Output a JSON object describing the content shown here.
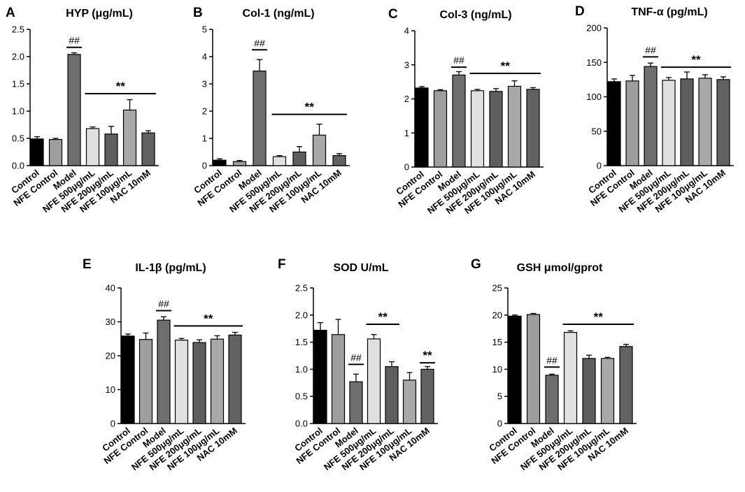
{
  "categories": [
    "Control",
    "NFE Control",
    "Model",
    "NFE 500μg/mL",
    "NFE 200μg/mL",
    "NFE 100μg/mL",
    "NAC 10mM"
  ],
  "colors": {
    "bars": [
      "#000000",
      "#9e9e9e",
      "#6e6e6e",
      "#e0e0e0",
      "#5e5e5e",
      "#a8a8a8",
      "#626262"
    ],
    "ink": "#000000"
  },
  "chart_data": [
    {
      "type": "bar",
      "panel": "A",
      "title": "HYP (μg/mL)",
      "ylim": [
        0,
        2.5
      ],
      "yticks": [
        "0.0",
        "0.5",
        "1.0",
        "1.5",
        "2.0",
        "2.5"
      ],
      "values": [
        0.49,
        0.48,
        2.04,
        0.68,
        0.58,
        1.02,
        0.6
      ],
      "errors": [
        0.04,
        0.02,
        0.03,
        0.03,
        0.14,
        0.19,
        0.04
      ],
      "annotations": [
        {
          "text": "##",
          "from": 2,
          "to": 2,
          "y": 2.17
        },
        {
          "text": "**",
          "from": 3,
          "to": 6,
          "y": 1.32
        }
      ]
    },
    {
      "type": "bar",
      "panel": "B",
      "title": "Col-1 (ng/mL)",
      "ylim": [
        0,
        5
      ],
      "yticks": [
        "0",
        "1",
        "2",
        "3",
        "4",
        "5"
      ],
      "values": [
        0.2,
        0.15,
        3.47,
        0.33,
        0.5,
        1.12,
        0.37
      ],
      "errors": [
        0.05,
        0.04,
        0.42,
        0.04,
        0.2,
        0.4,
        0.07
      ],
      "annotations": [
        {
          "text": "##",
          "from": 2,
          "to": 2,
          "y": 4.25
        },
        {
          "text": "**",
          "from": 3,
          "to": 6,
          "y": 1.88
        }
      ]
    },
    {
      "type": "bar",
      "panel": "C",
      "title": "Col-3 (ng/mL)",
      "ylim": [
        0,
        4
      ],
      "yticks": [
        "0",
        "1",
        "2",
        "3",
        "4"
      ],
      "values": [
        2.32,
        2.24,
        2.7,
        2.24,
        2.22,
        2.37,
        2.28
      ],
      "errors": [
        0.04,
        0.03,
        0.1,
        0.04,
        0.08,
        0.16,
        0.05
      ],
      "annotations": [
        {
          "text": "##",
          "from": 2,
          "to": 2,
          "y": 2.93
        },
        {
          "text": "**",
          "from": 3,
          "to": 6,
          "y": 2.75
        }
      ]
    },
    {
      "type": "bar",
      "panel": "D",
      "title": "TNF-α (pg/mL)",
      "ylim": [
        0,
        200
      ],
      "yticks": [
        "0",
        "50",
        "100",
        "150",
        "200"
      ],
      "values": [
        122,
        123,
        144,
        124,
        126,
        127,
        125
      ],
      "errors": [
        4,
        8,
        5,
        4,
        10,
        5,
        4
      ],
      "annotations": [
        {
          "text": "##",
          "from": 2,
          "to": 2,
          "y": 158
        },
        {
          "text": "**",
          "from": 3,
          "to": 6,
          "y": 143
        }
      ]
    },
    {
      "type": "bar",
      "panel": "E",
      "title": "IL-1β (pg/mL)",
      "ylim": [
        0,
        40
      ],
      "yticks": [
        "0",
        "10",
        "20",
        "30",
        "40"
      ],
      "values": [
        25.8,
        24.8,
        30.5,
        24.6,
        23.9,
        24.9,
        26.1
      ],
      "errors": [
        0.6,
        1.9,
        1.0,
        0.5,
        0.8,
        1.0,
        0.8
      ],
      "annotations": [
        {
          "text": "##",
          "from": 2,
          "to": 2,
          "y": 33.3
        },
        {
          "text": "**",
          "from": 3,
          "to": 6,
          "y": 28.8
        }
      ]
    },
    {
      "type": "bar",
      "panel": "F",
      "title": "SOD U/mL",
      "ylim": [
        0,
        2.5
      ],
      "yticks": [
        "0.0",
        "0.5",
        "1.0",
        "1.5",
        "2.0",
        "2.5"
      ],
      "values": [
        1.72,
        1.64,
        0.77,
        1.56,
        1.05,
        0.8,
        1.0
      ],
      "errors": [
        0.14,
        0.28,
        0.14,
        0.08,
        0.09,
        0.14,
        0.05
      ],
      "annotations": [
        {
          "text": "##",
          "from": 2,
          "to": 2,
          "y": 1.09
        },
        {
          "text": "**",
          "from": 3,
          "to": 4,
          "y": 1.83
        },
        {
          "text": "**",
          "from": 6,
          "to": 6,
          "y": 1.12
        }
      ]
    },
    {
      "type": "bar",
      "panel": "G",
      "title": "GSH μmol/gprot",
      "ylim": [
        0,
        25
      ],
      "yticks": [
        "0",
        "5",
        "10",
        "15",
        "20",
        "25"
      ],
      "values": [
        19.8,
        20.1,
        8.9,
        16.8,
        12.0,
        12.0,
        14.2
      ],
      "errors": [
        0.2,
        0.2,
        0.2,
        0.3,
        0.6,
        0.2,
        0.4
      ],
      "annotations": [
        {
          "text": "##",
          "from": 2,
          "to": 2,
          "y": 10.4
        },
        {
          "text": "**",
          "from": 3,
          "to": 6,
          "y": 18.3
        }
      ]
    }
  ]
}
